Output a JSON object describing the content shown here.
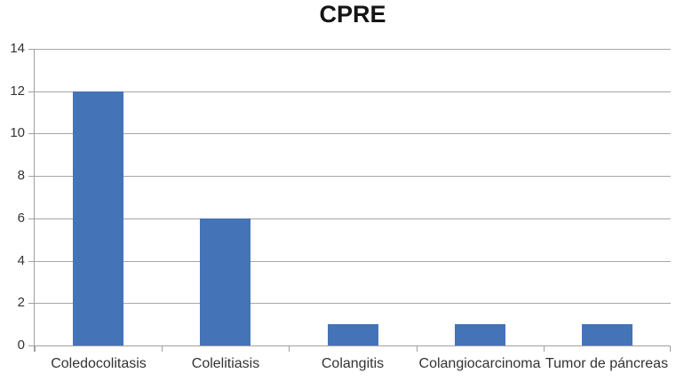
{
  "chart_data": {
    "type": "bar",
    "title": "CPRE",
    "categories": [
      "Coledocolitasis",
      "Colelitiasis",
      "Colangitis",
      "Colangiocarcinoma",
      "Tumor de páncreas"
    ],
    "values": [
      12,
      6,
      1,
      1,
      1
    ],
    "xlabel": "",
    "ylabel": "",
    "ylim": [
      0,
      14
    ],
    "yticks": [
      0,
      2,
      4,
      6,
      8,
      10,
      12,
      14
    ],
    "grid": true,
    "legend": false,
    "colors": {
      "bar": "#4573b8",
      "gridline": "#a6a6a6",
      "axis": "#a0a0a0",
      "axis_text": "#333333",
      "title_text": "#151515",
      "background": "#ffffff"
    }
  }
}
